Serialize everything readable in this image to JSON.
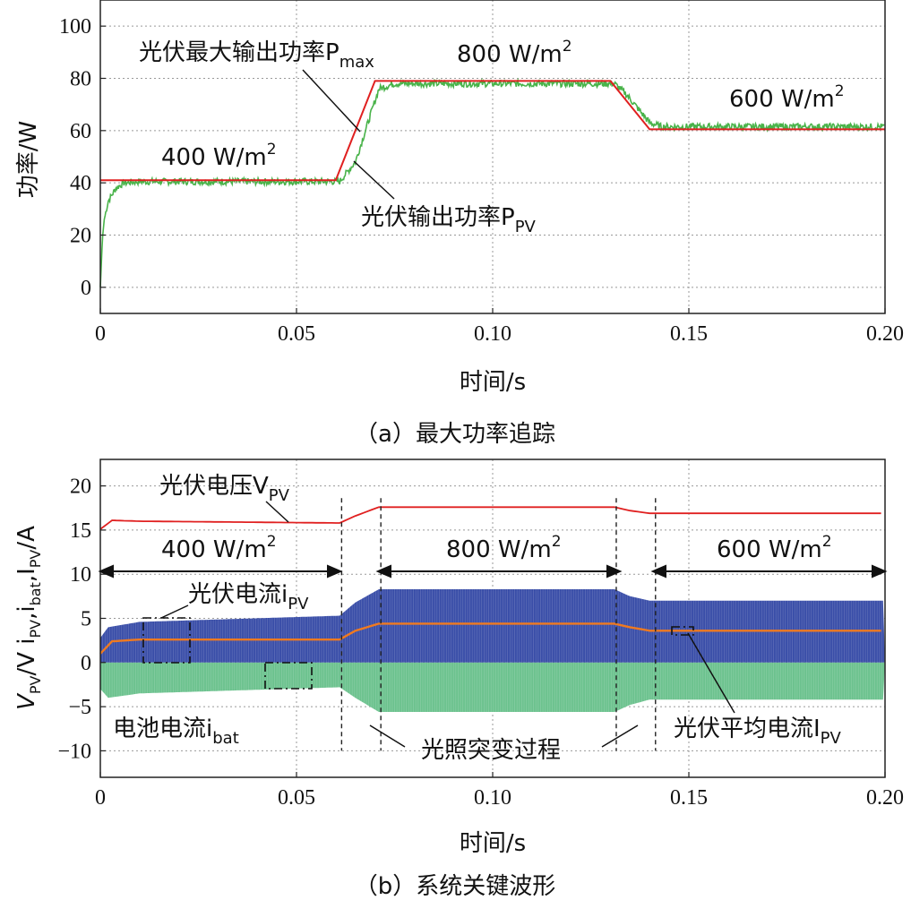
{
  "chart_data": [
    {
      "type": "line",
      "caption": "（a）最大功率追踪",
      "xlabel": "时间/s",
      "ylabel": "功率/W",
      "xlim": [
        0,
        0.2
      ],
      "ylim": [
        -10,
        110
      ],
      "xticks": [
        "0",
        "0.05",
        "0.10",
        "0.15",
        "0.20"
      ],
      "yticks": [
        "0",
        "20",
        "40",
        "60",
        "80",
        "100"
      ],
      "grid": true,
      "series": [
        {
          "name": "光伏最大输出功率Pmax",
          "color": "#e02020",
          "x": [
            0,
            0.06,
            0.07,
            0.13,
            0.14,
            0.2
          ],
          "y": [
            41,
            41,
            79,
            79,
            60.5,
            60.5
          ]
        },
        {
          "name": "光伏输出功率PPV",
          "color": "#49b34a",
          "x": [
            0,
            0.0005,
            0.001,
            0.002,
            0.004,
            0.006,
            0.01,
            0.061,
            0.065,
            0.071,
            0.075,
            0.131,
            0.134,
            0.14,
            0.143,
            0.2
          ],
          "y": [
            0,
            18,
            26,
            33,
            38,
            40,
            40.5,
            40.5,
            48,
            76,
            78,
            78,
            74,
            63,
            61.5,
            61.5
          ]
        }
      ],
      "annotations": {
        "pmax_label": "光伏最大输出功率P",
        "pmax_sub": "max",
        "ppv_label": "光伏输出功率P",
        "ppv_sub": "PV",
        "irr_400": "400 W/m",
        "irr_800": "800 W/m",
        "irr_600": "600 W/m",
        "sup2": "2"
      }
    },
    {
      "type": "line",
      "caption": "（b）系统关键波形",
      "xlabel": "时间/s",
      "ylabel_parts": [
        "V",
        "PV",
        "/V  i",
        "PV",
        ",i",
        "bat",
        ",I",
        "PV",
        "/A"
      ],
      "xlim": [
        0,
        0.2
      ],
      "ylim": [
        -13,
        23
      ],
      "xticks": [
        "0",
        "0.05",
        "0.10",
        "0.15",
        "0.20"
      ],
      "yticks": [
        "-10",
        "-5",
        "0",
        "5",
        "10",
        "15",
        "20"
      ],
      "grid": true,
      "series": [
        {
          "name": "光伏电压VPV",
          "color": "#e02020",
          "x": [
            0,
            0.003,
            0.01,
            0.061,
            0.065,
            0.071,
            0.131,
            0.135,
            0.14,
            0.2
          ],
          "y": [
            15.1,
            16.1,
            16.0,
            15.8,
            16.6,
            17.6,
            17.6,
            17.2,
            16.9,
            16.9
          ]
        },
        {
          "name": "光伏平均电流IPV",
          "color": "#f07a20",
          "x": [
            0,
            0.003,
            0.01,
            0.061,
            0.065,
            0.071,
            0.131,
            0.135,
            0.14,
            0.2
          ],
          "y": [
            1.0,
            2.4,
            2.6,
            2.6,
            3.6,
            4.4,
            4.4,
            4.0,
            3.6,
            3.6
          ]
        },
        {
          "name": "光伏电流iPV",
          "color": "#3a4ea8",
          "x": [
            0,
            0.002,
            0.01,
            0.061,
            0.065,
            0.071,
            0.131,
            0.135,
            0.14,
            0.2
          ],
          "y": [
            2.8,
            4.0,
            4.6,
            5.3,
            6.8,
            8.3,
            8.3,
            7.5,
            7.0,
            7.0
          ]
        },
        {
          "name": "电池电流ibat",
          "color": "#6cc28e",
          "x": [
            0,
            0.002,
            0.01,
            0.061,
            0.065,
            0.071,
            0.131,
            0.135,
            0.14,
            0.2
          ],
          "y": [
            -3.0,
            -4.0,
            -3.5,
            -2.8,
            -4.0,
            -5.6,
            -5.6,
            -4.8,
            -4.2,
            -4.2
          ]
        }
      ],
      "transitions": [
        0.0615,
        0.0715,
        0.1315,
        0.1415
      ],
      "annotations": {
        "vpv_label": "光伏电压V",
        "vpv_sub": "PV",
        "ipv_label": "光伏电流i",
        "ipv_sub": "PV",
        "ibat_label": "电池电流i",
        "ibat_sub": "bat",
        "iavg_label": "光伏平均电流I",
        "iavg_sub": "PV",
        "transition_label": "光照突变过程",
        "irr_400": "400 W/m",
        "irr_800": "800 W/m",
        "irr_600": "600 W/m",
        "sup2": "2"
      }
    }
  ]
}
